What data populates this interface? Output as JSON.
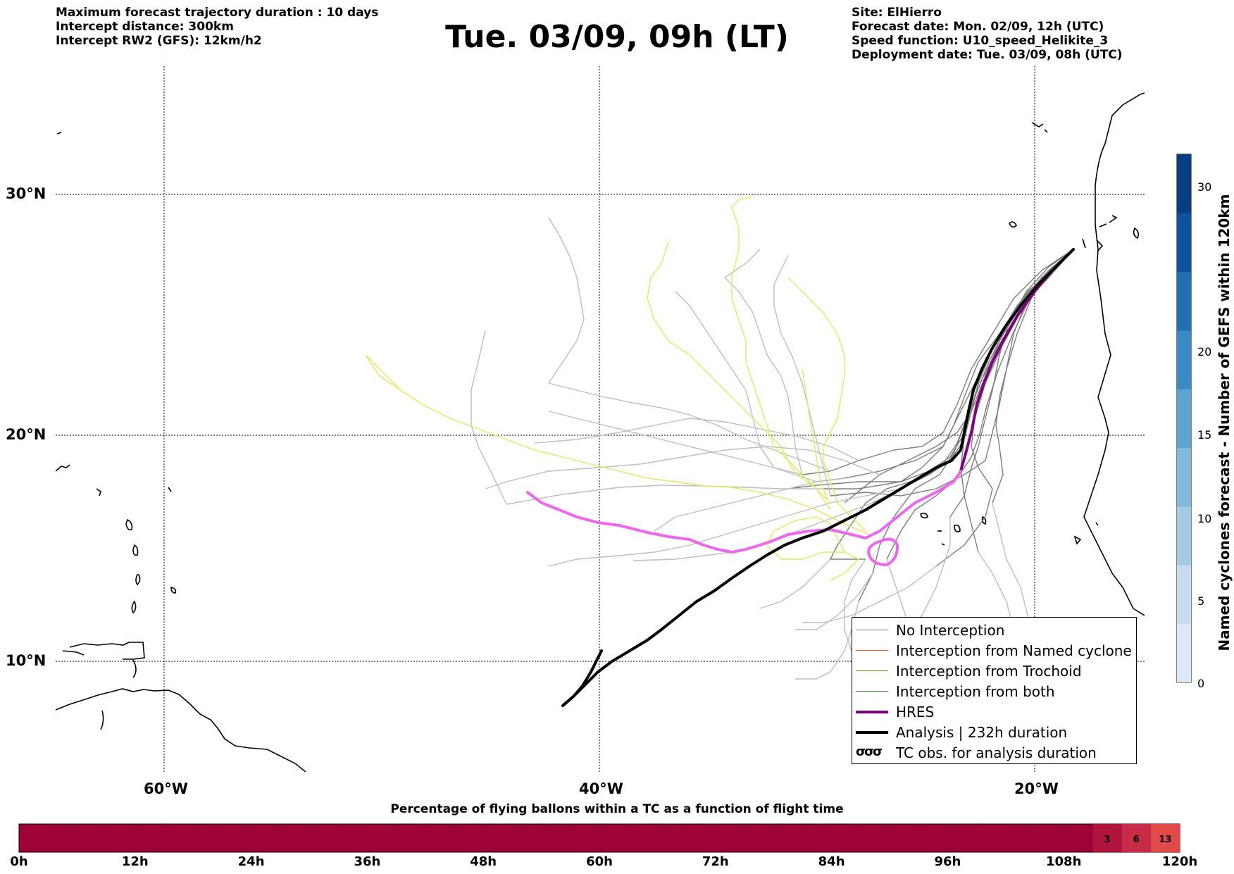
{
  "header": {
    "left_lines": [
      "Maximum forecast trajectory duration : 10 days",
      "Intercept distance: 300km",
      "Intercept RW2 (GFS):  12km/h2"
    ],
    "title": "Tue. 03/09, 09h (LT)",
    "right_lines": [
      "Site: ElHierro",
      "Forecast date: Mon. 02/09, 12h (UTC)",
      "Speed function: U10_speed_Helikite_3",
      "Deployment date: Tue. 03/09, 08h (UTC)"
    ]
  },
  "map": {
    "lon_ticks": [
      "60°W",
      "40°W",
      "20°W"
    ],
    "lat_ticks": [
      "30°N",
      "20°N",
      "10°N"
    ]
  },
  "legend": {
    "items": [
      {
        "label": "No Interception",
        "color": "#777777"
      },
      {
        "label": "Interception from Named cyclone",
        "color": "#ff5a1e"
      },
      {
        "label": "Interception from Trochoid",
        "color": "#7a7a1a"
      },
      {
        "label": "Interception from both",
        "color": "#2a8a2a"
      },
      {
        "label": "HRES",
        "color": "#800080"
      },
      {
        "label": "Analysis | 232h duration",
        "color": "#000000"
      },
      {
        "label": "TC obs. for analysis duration",
        "symbol": "σσσ"
      }
    ]
  },
  "colorbar": {
    "label": "Named cyclones forecast - Number of GEFS within 120km",
    "ticks": [
      "30",
      "20",
      "15",
      "10",
      "5",
      "0"
    ],
    "colors": [
      "#dce8f6",
      "#c7dbef",
      "#a3cbe3",
      "#82badb",
      "#5ca4d2",
      "#3c8ac4",
      "#226fb1",
      "#0e53a0",
      "#0a3e82"
    ]
  },
  "percent_bar": {
    "title": "Percentage of flying ballons within a TC as a function of flight time",
    "ticks": [
      "0h",
      "12h",
      "24h",
      "36h",
      "48h",
      "60h",
      "72h",
      "84h",
      "96h",
      "108h",
      "120h"
    ],
    "base_color": "#9e0238",
    "segments": [
      {
        "label": "3",
        "color": "#b0143c"
      },
      {
        "label": "6",
        "color": "#c72b45"
      },
      {
        "label": "13",
        "color": "#e24a47"
      }
    ]
  }
}
